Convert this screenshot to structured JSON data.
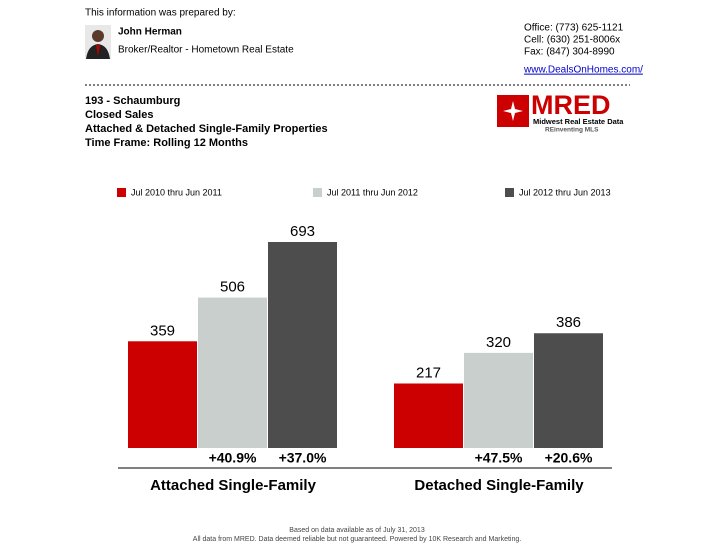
{
  "header": {
    "prepared_by": "This information was prepared by:",
    "agent_name": "John Herman",
    "agent_role": "Broker/Realtor - Hometown Real Estate",
    "office": "Office: (773) 625-1121",
    "cell": "Cell: (630) 251-8006x",
    "fax": "Fax: (847) 304-8990",
    "website": "www.DealsOnHomes.com/"
  },
  "report": {
    "area": "193 - Schaumburg",
    "metric": "Closed Sales",
    "property_types": "Attached & Detached Single-Family Properties",
    "time_frame": "Time Frame: Rolling 12 Months"
  },
  "logo": {
    "name": "MRED",
    "tagline": "Midwest Real Estate Data",
    "slogan": "REinventing MLS"
  },
  "chart_data": {
    "type": "bar",
    "categories": [
      "Attached Single-Family",
      "Detached Single-Family"
    ],
    "series": [
      {
        "name": "Jul 2010 thru Jun 2011",
        "color": "#cc0000",
        "values": [
          359,
          217
        ]
      },
      {
        "name": "Jul 2011 thru Jun 2012",
        "color": "#c9cfcc",
        "values": [
          506,
          320
        ]
      },
      {
        "name": "Jul 2012 thru Jun 2013",
        "color": "#4d4d4d",
        "values": [
          693,
          386
        ]
      }
    ],
    "changes": [
      [
        "+40.9%",
        "+37.0%"
      ],
      [
        "+47.5%",
        "+20.6%"
      ]
    ]
  },
  "footer": {
    "line1": "Based on data available as of July 31, 2013",
    "line2": "All data from MRED. Data deemed reliable but not guaranteed. Powered by 10K Research and Marketing."
  }
}
